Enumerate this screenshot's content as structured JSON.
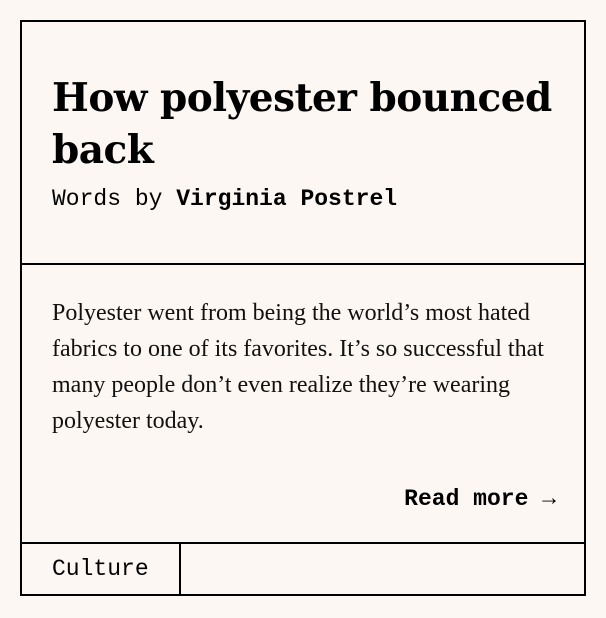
{
  "article": {
    "title": "How polyester bounced back",
    "byline_prefix": "Words by",
    "author": "Virginia Postrel",
    "excerpt": "Polyester went from being the world’s most hated fabrics to one of its favorites. It’s so successful that many people don’t even realize they’re wearing polyester today.",
    "read_more_label": "Read more →",
    "tag": "Culture"
  }
}
